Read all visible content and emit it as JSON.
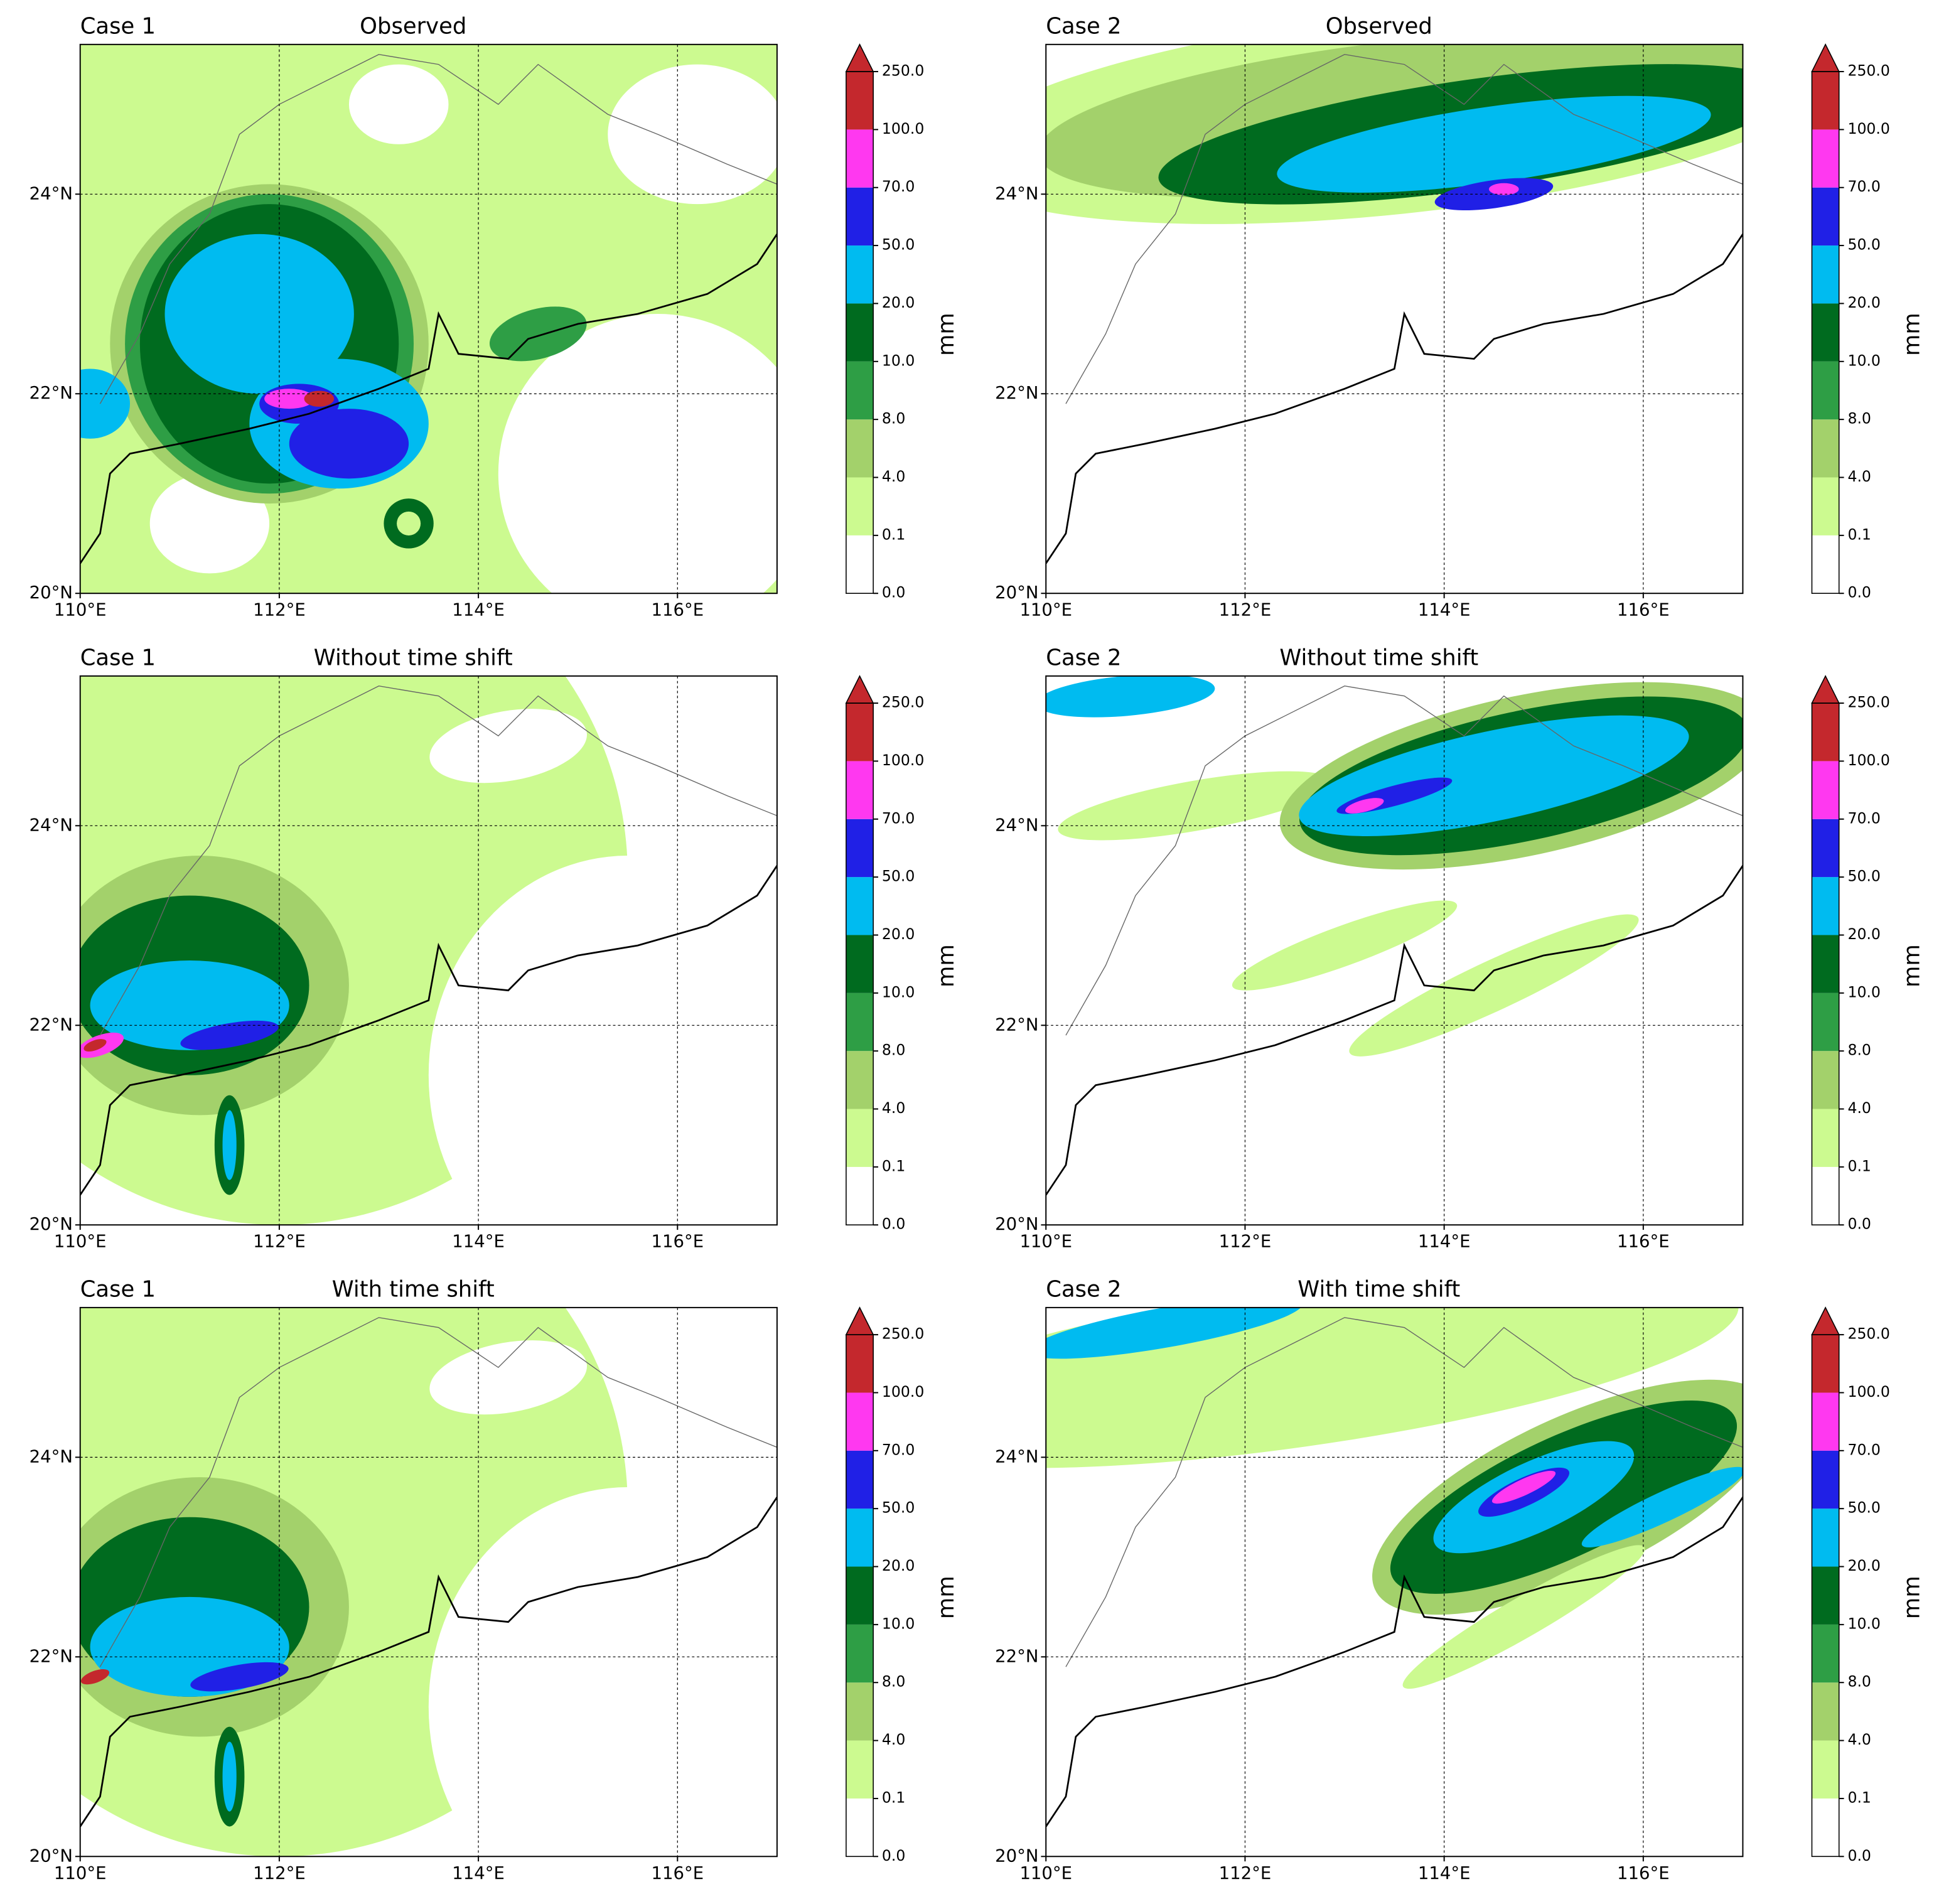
{
  "panels": [
    {
      "case": "Case 1",
      "title": "Observed"
    },
    {
      "case": "Case 2",
      "title": "Observed"
    },
    {
      "case": "Case 1",
      "title": "Without time shift"
    },
    {
      "case": "Case 2",
      "title": "Without time shift"
    },
    {
      "case": "Case 1",
      "title": "With time shift"
    },
    {
      "case": "Case 2",
      "title": "With time shift"
    }
  ],
  "map": {
    "xlim": [
      110,
      117
    ],
    "ylim": [
      20,
      25.5
    ],
    "xticks": [
      {
        "value": 110,
        "label": "110°E"
      },
      {
        "value": 112,
        "label": "112°E"
      },
      {
        "value": 114,
        "label": "114°E"
      },
      {
        "value": 116,
        "label": "116°E"
      }
    ],
    "yticks": [
      {
        "value": 20,
        "label": "20°N"
      },
      {
        "value": 22,
        "label": "22°N"
      },
      {
        "value": 24,
        "label": "24°N"
      }
    ]
  },
  "colorbar": {
    "label": "mm",
    "extend": "max",
    "levels": [
      {
        "value": 0,
        "label": "0.0"
      },
      0.1,
      {
        "value": 4,
        "label": "4.0"
      },
      {
        "value": 8,
        "label": "8.0"
      },
      {
        "value": 10,
        "label": "10.0"
      },
      {
        "value": 20,
        "label": "20.0"
      },
      {
        "value": 50,
        "label": "50.0"
      },
      {
        "value": 70,
        "label": "70.0"
      },
      {
        "value": 100,
        "label": "100.0"
      },
      {
        "value": 250,
        "label": "250.0"
      }
    ],
    "colors": [
      "#ffffff",
      "#ccfa90",
      "#a3d16b",
      "#2e9e45",
      "#006b1f",
      "#00bbf0",
      "#2020e6",
      "#ff38f0",
      "#c4282d"
    ]
  }
}
